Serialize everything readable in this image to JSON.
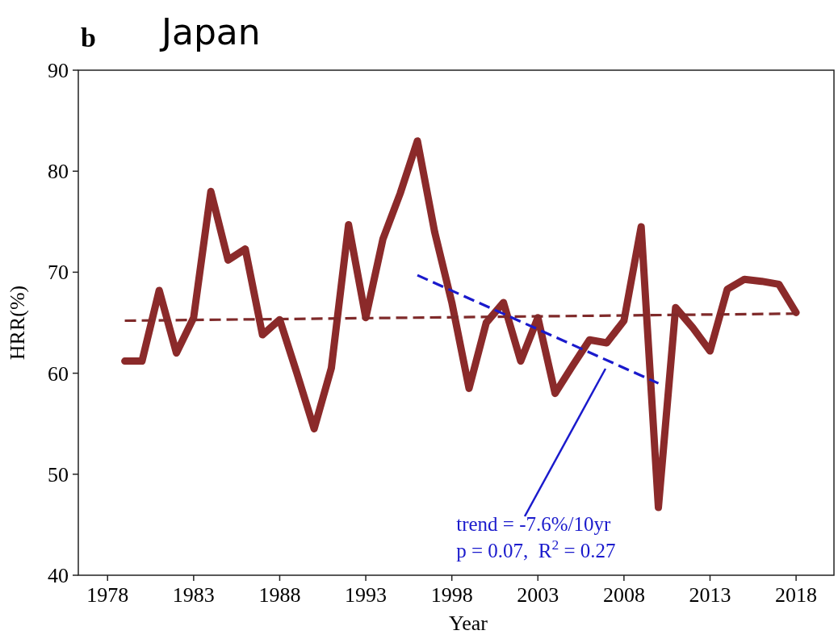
{
  "chart_data": {
    "type": "line",
    "title": "Japan",
    "xlabel": "Year",
    "ylabel": "HRR(%)",
    "xlim": [
      1976.3,
      2020.2
    ],
    "xticks": [
      1978,
      1983,
      1988,
      1993,
      1998,
      2003,
      2008,
      2013,
      2018
    ],
    "ylim": [
      40,
      90
    ],
    "yticks": [
      40,
      50,
      60,
      70,
      80,
      90
    ],
    "grid": false,
    "marker": "none",
    "series": [
      {
        "color": "#8b2a2a",
        "line_style": "solid",
        "x": [
          1979,
          1980,
          1981,
          1982,
          1983,
          1984,
          1985,
          1986,
          1987,
          1988,
          1989,
          1990,
          1991,
          1992,
          1993,
          1994,
          1995,
          1996,
          1997,
          1998,
          1999,
          2000,
          2001,
          2002,
          2003,
          2004,
          2005,
          2006,
          2007,
          2008,
          2009,
          2010,
          2011,
          2012,
          2013,
          2014,
          2015,
          2016,
          2017,
          2018
        ],
        "values": [
          61.2,
          61.2,
          68.2,
          62,
          65.5,
          78,
          71.2,
          72.3,
          63.8,
          65.3,
          60,
          54.5,
          60.5,
          74.7,
          65.5,
          73.3,
          77.8,
          83,
          74,
          67,
          58.5,
          65,
          67,
          61.2,
          65.5,
          58,
          60.7,
          63.3,
          63,
          65.2,
          74.5,
          46.7,
          66.5,
          64.5,
          62.2,
          68.3,
          69.3,
          69.1,
          68.8,
          66
        ]
      },
      {
        "color": "#7f2a2a",
        "line_style": "dashed",
        "x": [
          1979,
          2018
        ],
        "values": [
          65.2,
          65.9
        ]
      },
      {
        "color": "#1a1acc",
        "line_style": "dashed",
        "x": [
          1996,
          2010
        ],
        "values": [
          69.7,
          59
        ]
      }
    ],
    "annotations": [
      "b",
      "trend = -7.6%/10yr",
      "p = 0.07,  R$^{2}$ = 0.27"
    ]
  }
}
